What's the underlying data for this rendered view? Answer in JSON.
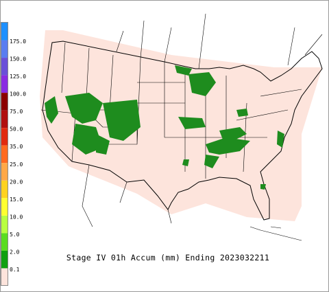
{
  "legend": {
    "levels": [
      {
        "label": "175.0",
        "color": "#5a7df0"
      },
      {
        "label": "150.0",
        "color": "#6a4fd8"
      },
      {
        "label": "125.0",
        "color": "#8a2be2"
      },
      {
        "label": "100.0",
        "color": "#8b0000"
      },
      {
        "label": "75.0",
        "color": "#b01010"
      },
      {
        "label": "50.0",
        "color": "#e02a10"
      },
      {
        "label": "35.0",
        "color": "#ff6a20"
      },
      {
        "label": "25.0",
        "color": "#ffa848"
      },
      {
        "label": "20.0",
        "color": "#ffd21e"
      },
      {
        "label": "15.0",
        "color": "#ffff30"
      },
      {
        "label": "10.0",
        "color": "#b8ff40"
      },
      {
        "label": "5.0",
        "color": "#5adc20"
      },
      {
        "label": "2.0",
        "color": "#10a010"
      },
      {
        "label": "0.1",
        "color": "#006a00"
      }
    ],
    "below_color": "#fde4dc"
  },
  "caption": "Stage IV 01h Accum (mm) Ending 2023032211"
}
